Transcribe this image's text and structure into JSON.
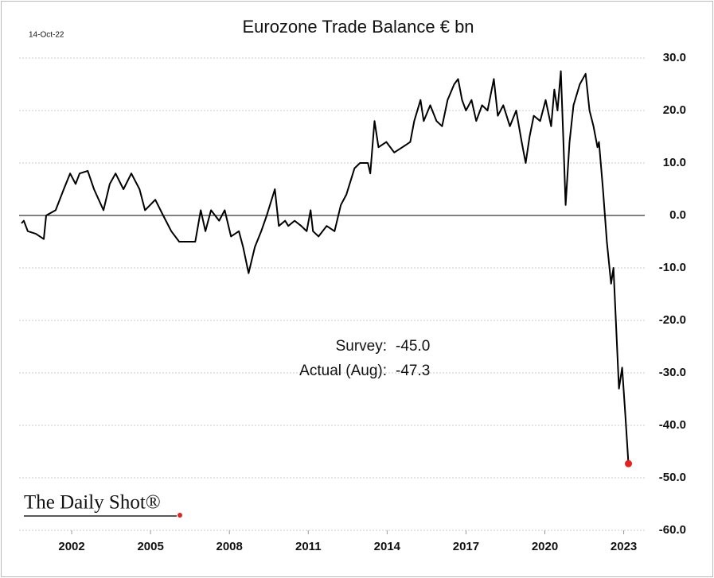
{
  "chart_data": {
    "type": "line",
    "title": "Eurozone Trade Balance € bn",
    "date": "14-Oct-22",
    "x": [
      2000.09,
      2000.18,
      2000.33,
      2000.64,
      2000.94,
      2001.03,
      2001.39,
      2001.7,
      2001.94,
      2002.15,
      2002.3,
      2002.61,
      2002.85,
      2003.21,
      2003.45,
      2003.67,
      2003.97,
      2004.27,
      2004.58,
      2004.79,
      2005.18,
      2005.48,
      2005.79,
      2006.09,
      2006.39,
      2006.7,
      2006.91,
      2007.09,
      2007.3,
      2007.61,
      2007.82,
      2008.06,
      2008.36,
      2008.52,
      2008.73,
      2008.97,
      2009.21,
      2009.42,
      2009.73,
      2009.88,
      2010.12,
      2010.24,
      2010.48,
      2010.73,
      2010.94,
      2011.09,
      2011.18,
      2011.39,
      2011.7,
      2012.0,
      2012.24,
      2012.45,
      2012.76,
      2012.97,
      2013.27,
      2013.36,
      2013.52,
      2013.67,
      2013.97,
      2014.27,
      2014.58,
      2014.88,
      2015.03,
      2015.27,
      2015.39,
      2015.64,
      2015.88,
      2016.09,
      2016.3,
      2016.55,
      2016.7,
      2016.85,
      2017.0,
      2017.21,
      2017.39,
      2017.61,
      2017.82,
      2018.06,
      2018.21,
      2018.42,
      2018.67,
      2018.91,
      2019.12,
      2019.27,
      2019.42,
      2019.58,
      2019.82,
      2020.03,
      2020.24,
      2020.36,
      2020.48,
      2020.61,
      2020.7,
      2020.79,
      2020.94,
      2021.09,
      2021.33,
      2021.55,
      2021.7,
      2021.85,
      2022.0,
      2022.06,
      2022.21,
      2022.36,
      2022.52,
      2022.61,
      2022.7,
      2022.82,
      2022.94,
      2023.06,
      2023.18
    ],
    "values": [
      -1.5,
      -1,
      -3,
      -3.5,
      -4.5,
      0,
      1,
      5,
      8,
      6,
      8,
      8.5,
      5,
      1,
      6,
      8,
      5,
      8,
      5,
      1,
      3,
      0,
      -3,
      -5,
      -5,
      -5,
      1,
      -3,
      1,
      -1,
      1,
      -4,
      -3,
      -6,
      -11,
      -6,
      -3,
      0,
      5,
      -2,
      -1,
      -2,
      -1,
      -2,
      -3,
      1,
      -3,
      -4,
      -2,
      -3,
      2,
      4,
      9,
      10,
      10,
      8,
      18,
      13,
      14,
      12,
      13,
      14,
      18,
      22,
      18,
      21,
      18,
      17,
      22,
      25,
      26,
      22,
      20,
      22,
      18,
      21,
      20,
      26,
      19,
      21,
      17,
      20,
      14,
      10,
      15,
      19,
      18,
      22,
      17,
      24,
      20,
      27.5,
      15,
      2,
      14,
      21,
      25,
      27,
      20,
      17,
      13,
      14,
      5,
      -5,
      -13,
      -10,
      -20,
      -33,
      -29,
      -38,
      -47.3
    ],
    "color": "#000000",
    "marker_color": "#e8201e",
    "xlim": [
      2000,
      2023.8
    ],
    "xticks": [
      2002,
      2005,
      2008,
      2011,
      2014,
      2017,
      2020,
      2023
    ],
    "ylim": [
      -60,
      30
    ],
    "yticks": [
      {
        "value": 30,
        "label": "30.0"
      },
      {
        "value": 20,
        "label": "20.0"
      },
      {
        "value": 10,
        "label": "10.0"
      },
      {
        "value": 0,
        "label": "0.0"
      },
      {
        "value": -10,
        "label": "-10.0"
      },
      {
        "value": -20,
        "label": "-20.0"
      },
      {
        "value": -30,
        "label": "-30.0"
      },
      {
        "value": -40,
        "label": "-40.0"
      },
      {
        "value": -50,
        "label": "-50.0"
      },
      {
        "value": -60,
        "label": "-60.0"
      }
    ],
    "grid": true,
    "annotations": [
      {
        "label": "Survey:",
        "value": "-45.0"
      },
      {
        "label": "Actual (Aug):",
        "value": "-47.3"
      }
    ],
    "source": "The Daily Shot®"
  }
}
